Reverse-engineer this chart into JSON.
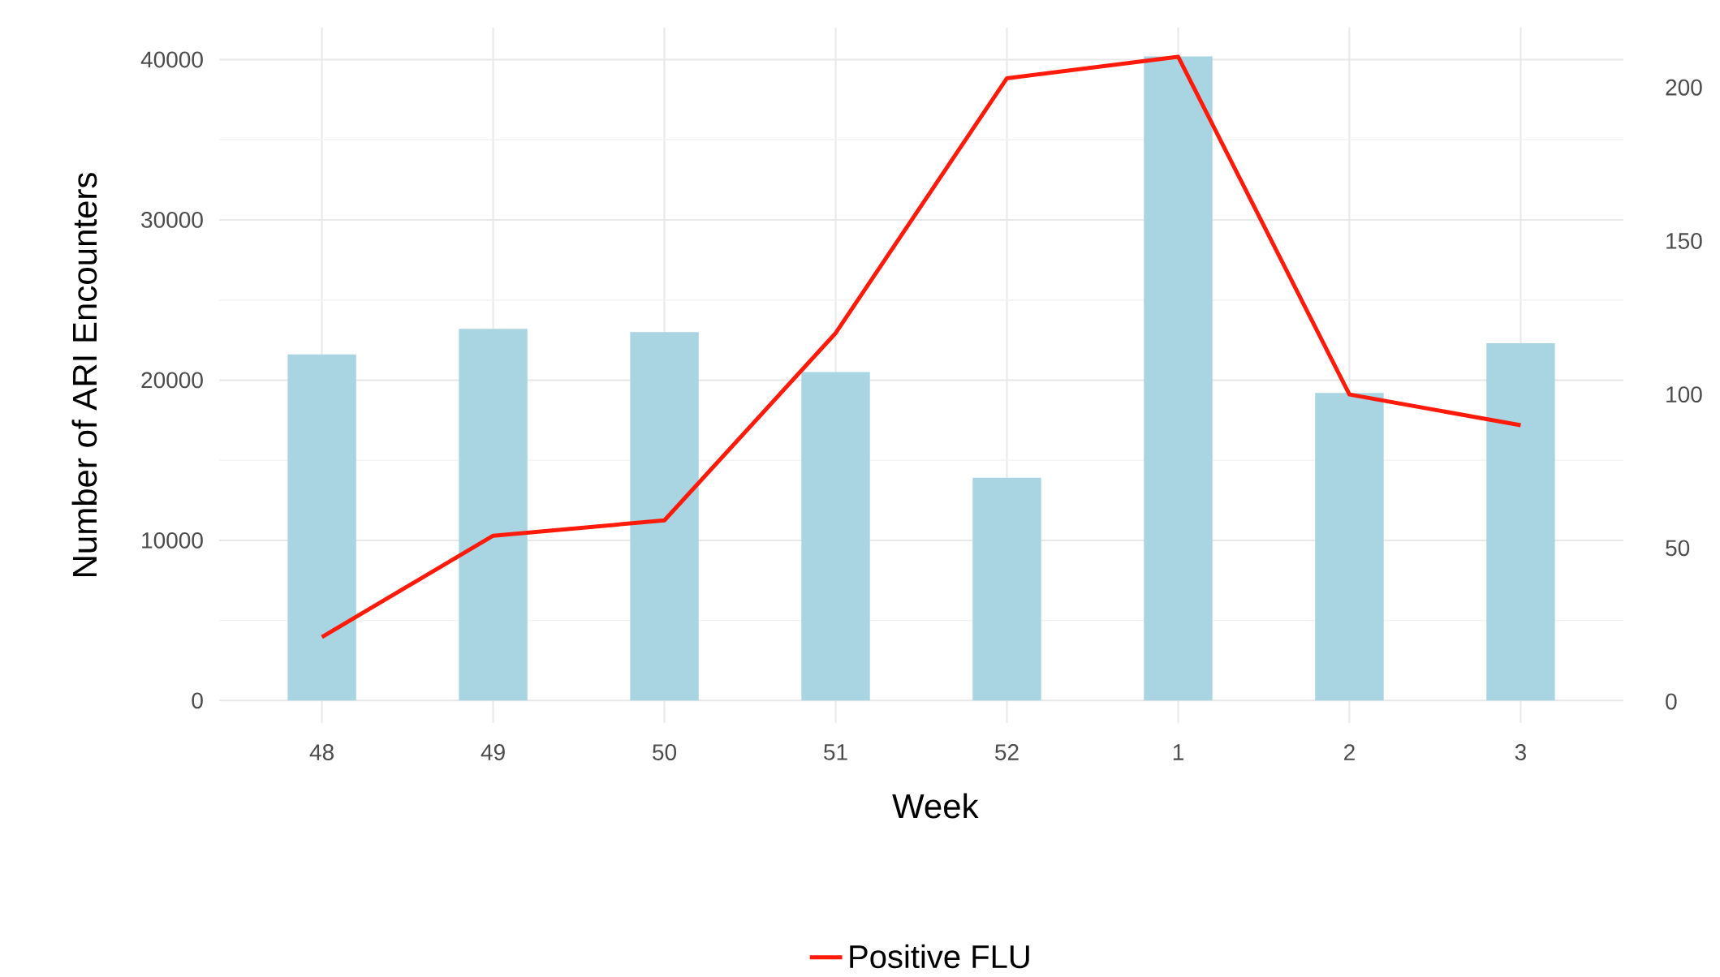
{
  "chart_data": {
    "type": "bar",
    "xlabel": "Week",
    "ylabel": "Number of ARI Encounters",
    "categories": [
      "48",
      "49",
      "50",
      "51",
      "52",
      "1",
      "2",
      "3"
    ],
    "series": [
      {
        "color": "#a8d5e1",
        "values": [
          21600,
          23200,
          23000,
          20500,
          13900,
          40200,
          19200,
          22300
        ]
      },
      {
        "type": "line",
        "name": "Positive FLU",
        "color": "#ff1a0a",
        "axis": "y2",
        "values": [
          21,
          54,
          59,
          120,
          203,
          210,
          100,
          90
        ]
      }
    ],
    "ylim": [
      -1400,
      42000
    ],
    "yticks": [
      0,
      10000,
      20000,
      30000,
      40000
    ],
    "y2lim": [
      -7,
      219.5
    ],
    "y2ticks": [
      0,
      50,
      100,
      150,
      200
    ],
    "grid": true,
    "legend": "bottom"
  }
}
